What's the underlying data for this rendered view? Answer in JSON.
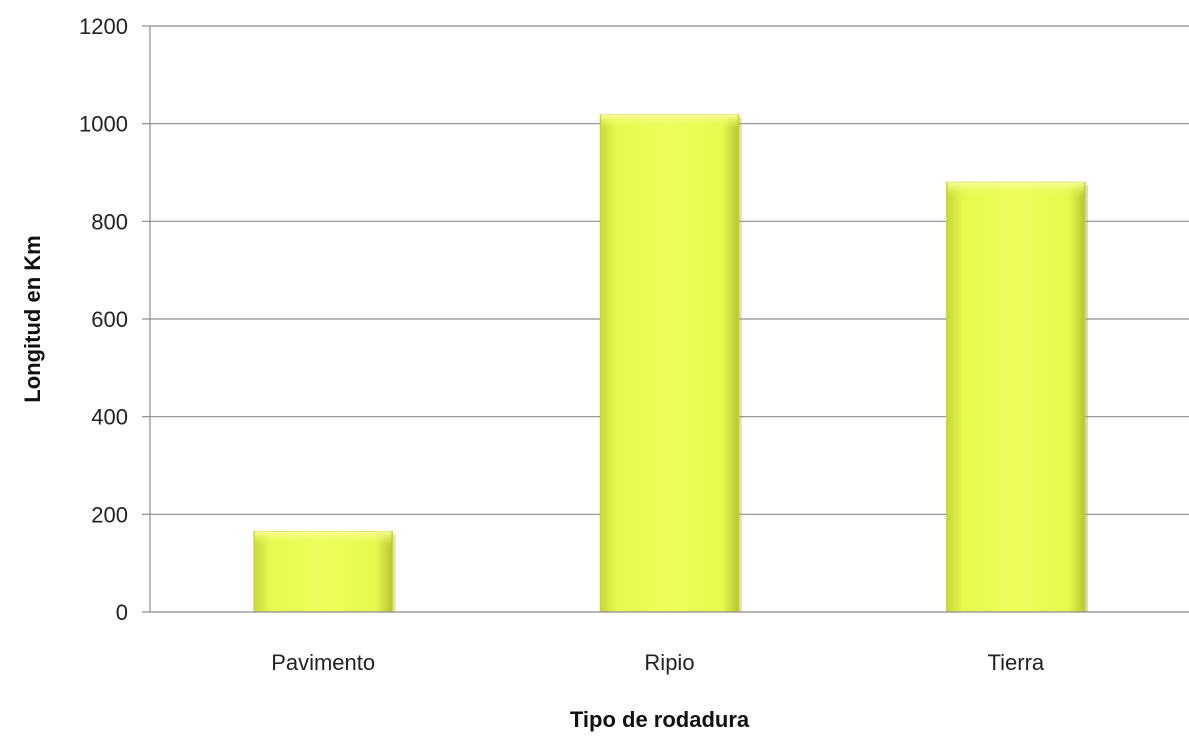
{
  "chart_data": {
    "type": "bar",
    "title": "",
    "xlabel": "Tipo de rodadura",
    "ylabel": "Longitud en Km",
    "categories": [
      "Pavimento",
      "Ripio",
      "Tierra"
    ],
    "values": [
      165,
      1018,
      880
    ],
    "ylim": [
      0,
      1200
    ],
    "yticks": [
      0,
      200,
      400,
      600,
      800,
      1000,
      1200
    ],
    "grid": true,
    "legend": "none",
    "bar_color": "#e8fb52"
  }
}
